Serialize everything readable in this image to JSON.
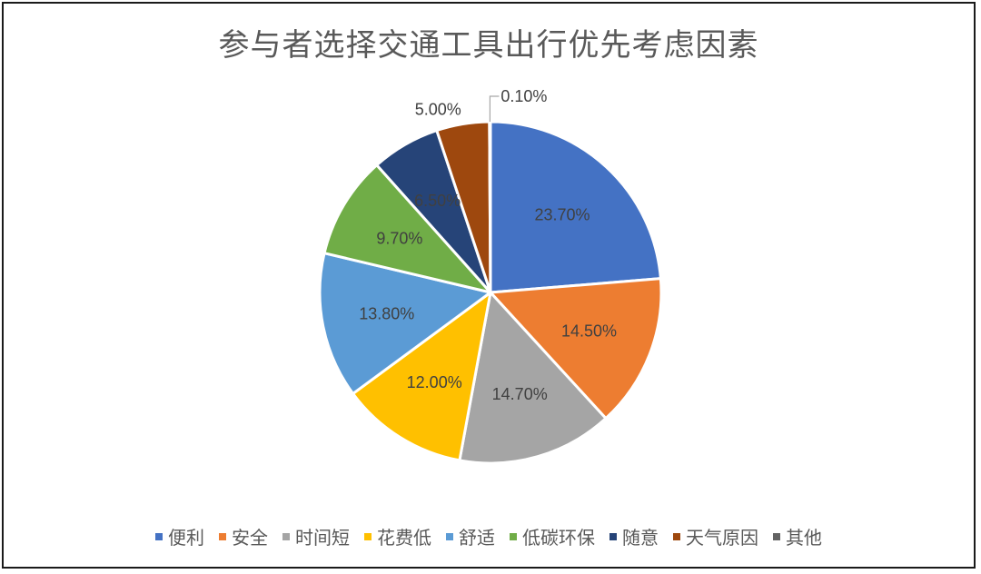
{
  "chart_data": {
    "type": "pie",
    "title": "参与者选择交通工具出行优先考虑因素",
    "categories": [
      "便利",
      "安全",
      "时间短",
      "花费低",
      "舒适",
      "低碳环保",
      "随意",
      "天气原因",
      "其他"
    ],
    "values": [
      23.7,
      14.5,
      14.7,
      12.0,
      13.8,
      9.7,
      6.5,
      5.0,
      0.1
    ],
    "labels": [
      "23.70%",
      "14.50%",
      "14.70%",
      "12.00%",
      "13.80%",
      "9.70%",
      "6.50%",
      "5.00%",
      "0.10%"
    ],
    "colors": [
      "#4472C4",
      "#ED7D31",
      "#A5A5A5",
      "#FFC000",
      "#5B9BD5",
      "#70AD47",
      "#264478",
      "#9E480E",
      "#636363"
    ],
    "legend_position": "bottom"
  }
}
